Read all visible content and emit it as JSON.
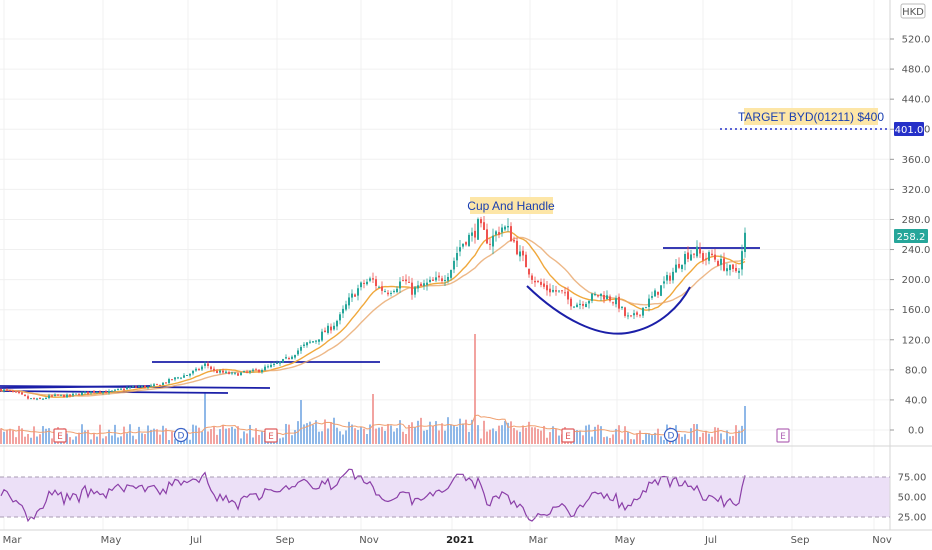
{
  "chart_data": {
    "type": "candlestick",
    "symbol": "BYD (01211)",
    "currency": "HKD",
    "y_axis": {
      "ticks": [
        0,
        40,
        80,
        120,
        160,
        200,
        240,
        280,
        320,
        360,
        400,
        440,
        480,
        520
      ],
      "tick_labels": [
        "0.0",
        "40.0",
        "80.0",
        "120.0",
        "160.0",
        "200.0",
        "240.0",
        "280.0",
        "320.0",
        "360.0",
        "400.0",
        "440.0",
        "480.0",
        "520.0"
      ],
      "ylim": [
        -18,
        566
      ]
    },
    "x_axis": {
      "labels": [
        {
          "text": "Mar",
          "bold": false
        },
        {
          "text": "May",
          "bold": false
        },
        {
          "text": "Jul",
          "bold": false
        },
        {
          "text": "Sep",
          "bold": false
        },
        {
          "text": "Nov",
          "bold": false
        },
        {
          "text": "2021",
          "bold": true
        },
        {
          "text": "Mar",
          "bold": false
        },
        {
          "text": "May",
          "bold": false
        },
        {
          "text": "Jul",
          "bold": false
        },
        {
          "text": "Jul",
          "bold": false
        },
        {
          "text": "Sep",
          "bold": false
        },
        {
          "text": "Nov",
          "bold": false
        }
      ]
    },
    "price_path": [
      [
        0,
        54
      ],
      [
        8,
        52
      ],
      [
        18,
        48
      ],
      [
        28,
        42
      ],
      [
        38,
        40
      ],
      [
        48,
        44
      ],
      [
        58,
        46
      ],
      [
        68,
        45
      ],
      [
        78,
        48
      ],
      [
        88,
        50
      ],
      [
        98,
        52
      ],
      [
        108,
        50
      ],
      [
        118,
        53
      ],
      [
        128,
        56
      ],
      [
        138,
        58
      ],
      [
        148,
        57
      ],
      [
        158,
        60
      ],
      [
        168,
        65
      ],
      [
        178,
        70
      ],
      [
        188,
        74
      ],
      [
        198,
        80
      ],
      [
        206,
        88
      ],
      [
        214,
        78
      ],
      [
        224,
        76
      ],
      [
        234,
        74
      ],
      [
        244,
        76
      ],
      [
        254,
        78
      ],
      [
        264,
        82
      ],
      [
        274,
        86
      ],
      [
        284,
        92
      ],
      [
        292,
        100
      ],
      [
        300,
        108
      ],
      [
        308,
        115
      ],
      [
        316,
        120
      ],
      [
        324,
        130
      ],
      [
        332,
        138
      ],
      [
        340,
        150
      ],
      [
        348,
        170
      ],
      [
        356,
        185
      ],
      [
        364,
        195
      ],
      [
        372,
        200
      ],
      [
        380,
        188
      ],
      [
        388,
        185
      ],
      [
        396,
        192
      ],
      [
        404,
        200
      ],
      [
        412,
        185
      ],
      [
        420,
        190
      ],
      [
        430,
        195
      ],
      [
        440,
        200
      ],
      [
        450,
        212
      ],
      [
        458,
        240
      ],
      [
        466,
        255
      ],
      [
        472,
        258
      ],
      [
        478,
        272
      ],
      [
        484,
        260
      ],
      [
        490,
        250
      ],
      [
        496,
        262
      ],
      [
        502,
        270
      ],
      [
        508,
        265
      ],
      [
        514,
        250
      ],
      [
        520,
        232
      ],
      [
        526,
        220
      ],
      [
        532,
        205
      ],
      [
        538,
        195
      ],
      [
        546,
        188
      ],
      [
        554,
        185
      ],
      [
        562,
        182
      ],
      [
        570,
        170
      ],
      [
        578,
        168
      ],
      [
        586,
        172
      ],
      [
        594,
        178
      ],
      [
        602,
        180
      ],
      [
        610,
        175
      ],
      [
        618,
        168
      ],
      [
        626,
        150
      ],
      [
        632,
        148
      ],
      [
        640,
        158
      ],
      [
        648,
        170
      ],
      [
        656,
        182
      ],
      [
        664,
        195
      ],
      [
        672,
        208
      ],
      [
        680,
        225
      ],
      [
        688,
        235
      ],
      [
        696,
        238
      ],
      [
        704,
        228
      ],
      [
        712,
        232
      ],
      [
        720,
        222
      ],
      [
        728,
        215
      ],
      [
        734,
        208
      ],
      [
        740,
        220
      ],
      [
        745,
        258
      ]
    ],
    "last_price": "258.2",
    "target_price": "401.0",
    "moving_averages": [
      {
        "color": "#f0a83c"
      },
      {
        "color": "#e8a66a"
      }
    ],
    "volume_ma_color": "#f0a070",
    "rsi": {
      "ticks": [
        25,
        50,
        75
      ],
      "tick_labels": [
        "25.00",
        "50.00",
        "75.00"
      ],
      "upper_band": 70,
      "lower_band": 30,
      "color": "#8b3fa8",
      "band_fill": "#ece0f7"
    },
    "earnings_markers": [
      "E",
      "E",
      "E",
      "E"
    ],
    "dividend_markers": [
      "D",
      "D"
    ],
    "annotations": [
      {
        "text": "Cup And Handle"
      },
      {
        "text": "TARGET BYD(01211) $400"
      }
    ],
    "colors": {
      "up": "#26a69a",
      "down": "#ef5350",
      "drawing_line": "#1b1fa8",
      "cup_line": "#1b1fa8",
      "target_dotted": "#2530c8",
      "price_tag_bg": "#26a69a",
      "target_tag_bg": "#2530c8",
      "annotation_bg": "#fde6a7"
    }
  }
}
